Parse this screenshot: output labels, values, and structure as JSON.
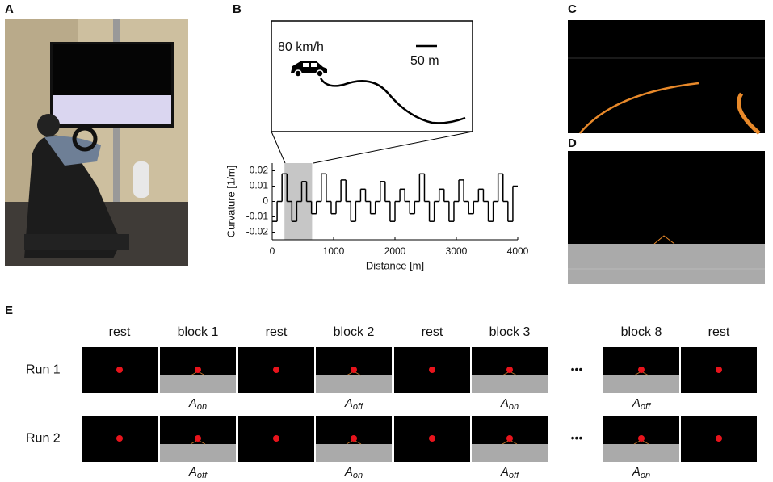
{
  "panel_labels": [
    "A",
    "B",
    "C",
    "D",
    "E"
  ],
  "chart_data": {
    "type": "line",
    "step": true,
    "xlabel": "Distance [m]",
    "ylabel": "Curvature [1/m]",
    "annotations": {
      "speed": "80 km/h",
      "scale": "50 m"
    },
    "x": [
      0,
      80,
      160,
      240,
      320,
      400,
      480,
      560,
      640,
      720,
      800,
      880,
      960,
      1040,
      1120,
      1200,
      1280,
      1360,
      1440,
      1520,
      1600,
      1680,
      1760,
      1840,
      1920,
      2000,
      2080,
      2160,
      2240,
      2320,
      2400,
      2480,
      2560,
      2640,
      2720,
      2800,
      2880,
      2960,
      3040,
      3120,
      3200,
      3280,
      3360,
      3440,
      3520,
      3600,
      3680,
      3760,
      3840,
      3920
    ],
    "values": [
      -0.013,
      0,
      0.018,
      0,
      -0.013,
      0,
      0.013,
      0,
      -0.008,
      0,
      0.018,
      0,
      -0.008,
      0,
      0.014,
      0,
      -0.013,
      0,
      0.008,
      0,
      -0.008,
      0,
      0.013,
      0,
      -0.013,
      0,
      0.008,
      0,
      -0.008,
      0,
      0.018,
      0,
      -0.013,
      0,
      0.008,
      0,
      -0.013,
      0,
      0.014,
      0,
      -0.008,
      0,
      0.008,
      0,
      -0.013,
      0,
      0.018,
      0,
      -0.013,
      0.01
    ],
    "highlight": [
      200,
      650
    ],
    "xlim": [
      0,
      4000
    ],
    "xticks": [
      0,
      1000,
      2000,
      3000,
      4000
    ],
    "ylim": [
      -0.025,
      0.025
    ],
    "yticks": [
      0.02,
      0.01,
      0,
      -0.01,
      -0.02
    ]
  },
  "panel_e": {
    "columns": [
      "rest",
      "block 1",
      "rest",
      "block 2",
      "rest",
      "block 3",
      "block 8",
      "rest"
    ],
    "ellipsis": "•••",
    "runs": [
      {
        "label": "Run 1",
        "conditions": [
          {
            "base": "A",
            "sub": "on"
          },
          {
            "base": "A",
            "sub": "off"
          },
          {
            "base": "A",
            "sub": "on"
          },
          {
            "base": "A",
            "sub": "off"
          }
        ]
      },
      {
        "label": "Run 2",
        "conditions": [
          {
            "base": "A",
            "sub": "off"
          },
          {
            "base": "A",
            "sub": "on"
          },
          {
            "base": "A",
            "sub": "off"
          },
          {
            "base": "A",
            "sub": "on"
          }
        ]
      }
    ]
  }
}
